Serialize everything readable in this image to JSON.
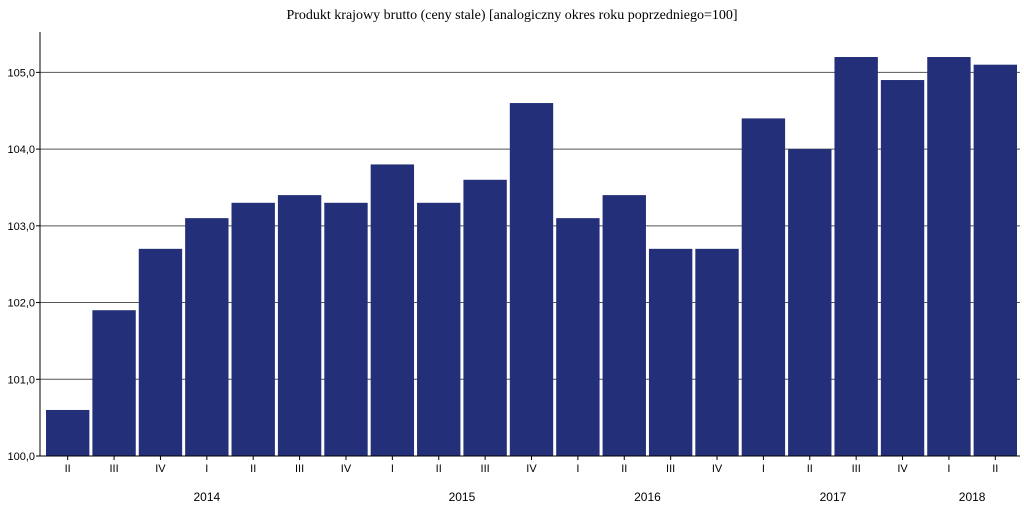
{
  "chart_data": {
    "type": "bar",
    "title": "Produkt krajowy brutto (ceny stale) [analogiczny okres roku poprzedniego=100]",
    "xlabel": "",
    "ylabel": "",
    "ylim": [
      100.0,
      105.5
    ],
    "yticks": [
      "100,0",
      "101,0",
      "102,0",
      "103,0",
      "104,0",
      "105,0"
    ],
    "ytick_values": [
      100,
      101,
      102,
      103,
      104,
      105
    ],
    "grid": true,
    "categories": [
      "II",
      "III",
      "IV",
      "I",
      "II",
      "III",
      "IV",
      "I",
      "II",
      "III",
      "IV",
      "I",
      "II",
      "III",
      "IV",
      "I",
      "II",
      "III",
      "IV",
      "I",
      "II"
    ],
    "values": [
      100.6,
      101.9,
      102.7,
      103.1,
      103.3,
      103.4,
      103.3,
      103.8,
      103.3,
      103.6,
      104.6,
      103.1,
      103.4,
      102.7,
      102.7,
      104.4,
      104.0,
      105.2,
      104.9,
      105.2,
      105.1
    ],
    "year_groups": [
      {
        "label": "2014",
        "start": 0,
        "end": 6
      },
      {
        "label": "2015",
        "start": 7,
        "end": 10
      },
      {
        "label": "2016",
        "start": 11,
        "end": 14
      },
      {
        "label": "2017",
        "start": 15,
        "end": 18
      },
      {
        "label": "2018",
        "start": 19,
        "end": 20
      }
    ],
    "bar_color": "#232f78"
  }
}
